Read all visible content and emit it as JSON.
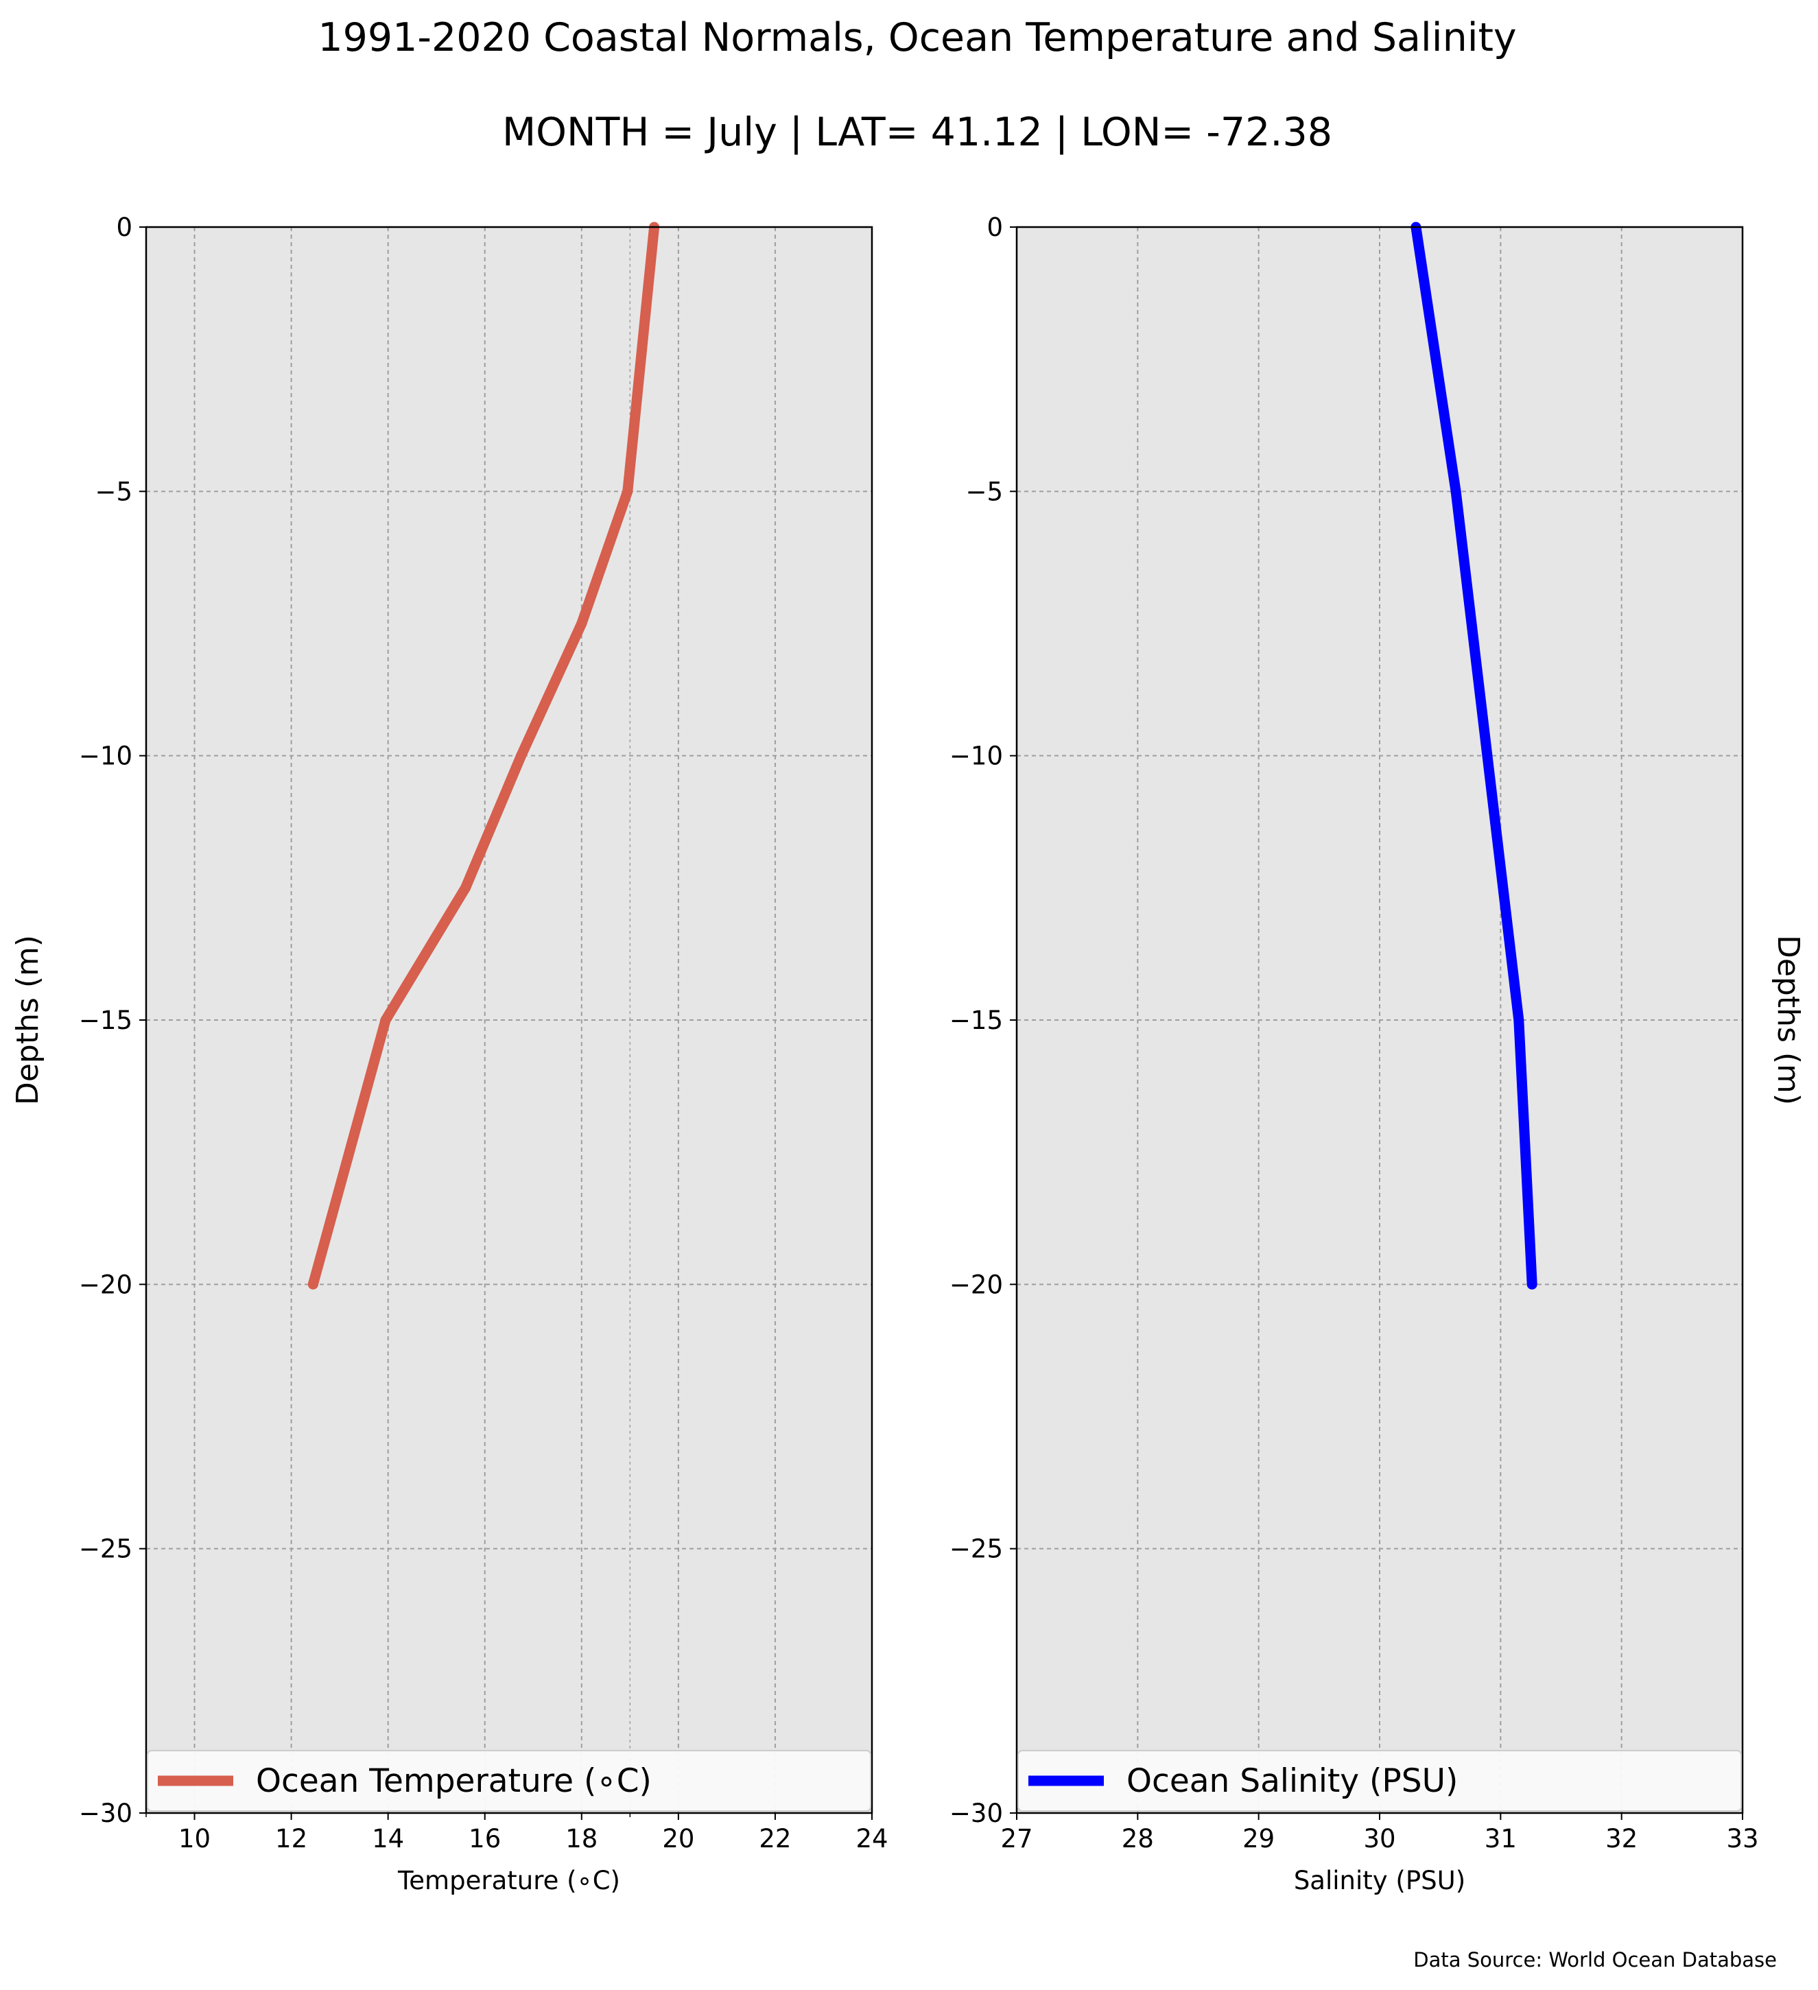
{
  "title": "1991-2020 Coastal Normals, Ocean Temperature and Salinity",
  "subtitle": "MONTH = July | LAT= 41.12 | LON= -72.38",
  "source": "Data Source: World Ocean Database",
  "colors": {
    "plot_background": "#e6e6e6",
    "grid": "#9e9e9e",
    "temperature": "#d65f4e",
    "salinity": "#0000ff"
  },
  "chart_data": [
    {
      "type": "line",
      "xlabel": "Temperature (∘C)",
      "ylabel": "Depths (m)",
      "ylabel_side": "left",
      "xlim": [
        9,
        24
      ],
      "ylim": [
        -30,
        0
      ],
      "xticks": [
        10,
        12,
        14,
        16,
        18,
        20,
        22,
        24
      ],
      "xticklabels": [
        "10",
        "12",
        "14",
        "16",
        "18",
        "20",
        "22",
        "24"
      ],
      "xminor": [
        9,
        19
      ],
      "yticks": [
        0,
        -5,
        -10,
        -15,
        -20,
        -25,
        -30
      ],
      "yticklabels": [
        "0",
        "−5",
        "−10",
        "−15",
        "−20",
        "−25",
        "−30"
      ],
      "grid": true,
      "legend_loc": "lower center",
      "series": [
        {
          "name": "Ocean Temperature (∘C)",
          "color": "#d65f4e",
          "x": [
            19.5,
            18.95,
            18.0,
            16.75,
            15.6,
            13.95,
            12.45
          ],
          "y": [
            0,
            -5,
            -7.5,
            -10,
            -12.5,
            -15,
            -20
          ]
        }
      ]
    },
    {
      "type": "line",
      "xlabel": "Salinity (PSU)",
      "ylabel": "Depths (m)",
      "ylabel_side": "right",
      "xlim": [
        27,
        33
      ],
      "ylim": [
        -30,
        0
      ],
      "xticks": [
        27,
        28,
        29,
        30,
        31,
        32,
        33
      ],
      "xticklabels": [
        "27",
        "28",
        "29",
        "30",
        "31",
        "32",
        "33"
      ],
      "xminor": [],
      "yticks": [
        0,
        -5,
        -10,
        -15,
        -20,
        -25,
        -30
      ],
      "yticklabels": [
        "0",
        "−5",
        "−10",
        "−15",
        "−20",
        "−25",
        "−30"
      ],
      "grid": true,
      "legend_loc": "lower center",
      "series": [
        {
          "name": "Ocean Salinity (PSU)",
          "color": "#0000ff",
          "x": [
            30.3,
            30.63,
            31.15,
            31.26
          ],
          "y": [
            0,
            -5,
            -15,
            -20
          ]
        }
      ]
    }
  ]
}
